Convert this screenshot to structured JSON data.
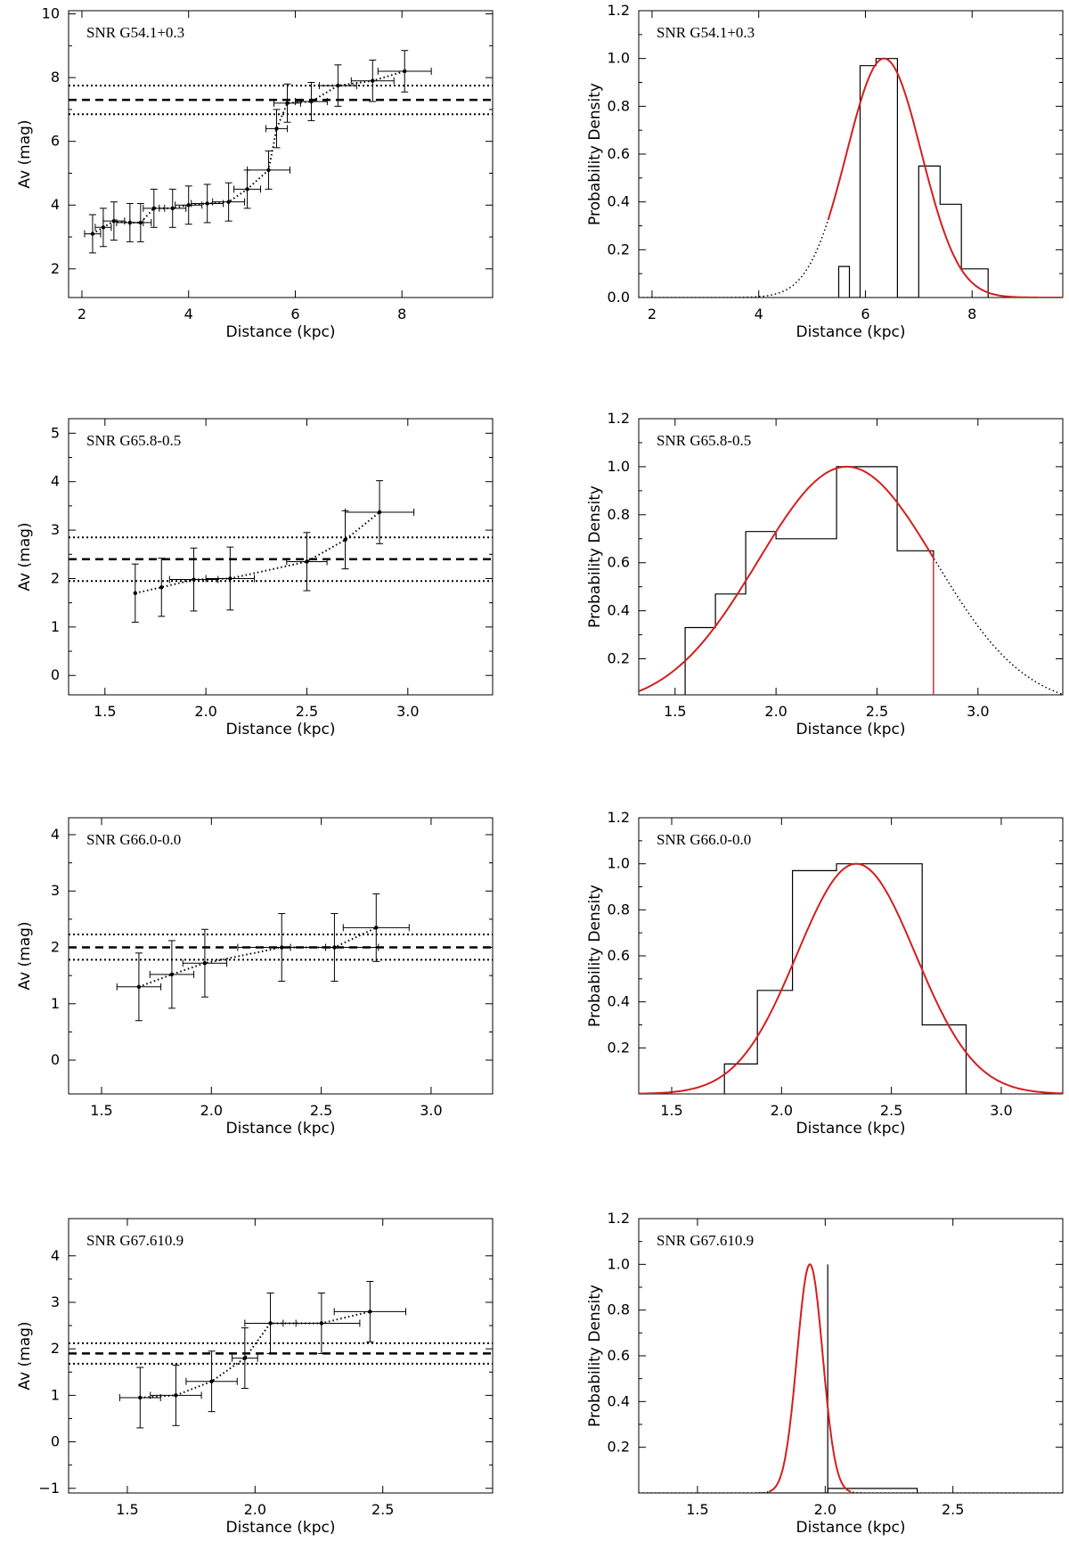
{
  "figure": {
    "rows": [
      {
        "av_panel": {
          "type": "scatter",
          "title": "SNR G54.1+0.3",
          "xlabel": "Distance (kpc)",
          "ylabel": "Av (mag)",
          "xlim": [
            1.75,
            9.7
          ],
          "ylim": [
            1.1,
            10.1
          ],
          "xticks": [
            2,
            4,
            6,
            8
          ],
          "xtick_labels": [
            "2",
            "4",
            "6",
            "8"
          ],
          "yticks": [
            2,
            4,
            6,
            8,
            10
          ],
          "ytick_labels": [
            "2",
            "4",
            "6",
            "8",
            "10"
          ],
          "hlines": {
            "mean": 7.3,
            "lower": 6.85,
            "upper": 7.75
          },
          "points": [
            {
              "x": 2.2,
              "y": 3.1,
              "xerr": 0.15,
              "yerr": 0.6
            },
            {
              "x": 2.4,
              "y": 3.3,
              "xerr": 0.15,
              "yerr": 0.6
            },
            {
              "x": 2.6,
              "y": 3.5,
              "xerr": 0.2,
              "yerr": 0.6
            },
            {
              "x": 2.9,
              "y": 3.45,
              "xerr": 0.25,
              "yerr": 0.6
            },
            {
              "x": 3.1,
              "y": 3.45,
              "xerr": 0.2,
              "yerr": 0.6
            },
            {
              "x": 3.35,
              "y": 3.9,
              "xerr": 0.2,
              "yerr": 0.6
            },
            {
              "x": 3.7,
              "y": 3.9,
              "xerr": 0.25,
              "yerr": 0.6
            },
            {
              "x": 4.0,
              "y": 4.0,
              "xerr": 0.25,
              "yerr": 0.6
            },
            {
              "x": 4.35,
              "y": 4.05,
              "xerr": 0.3,
              "yerr": 0.6
            },
            {
              "x": 4.75,
              "y": 4.1,
              "xerr": 0.3,
              "yerr": 0.6
            },
            {
              "x": 5.1,
              "y": 4.5,
              "xerr": 0.25,
              "yerr": 0.6
            },
            {
              "x": 5.5,
              "y": 5.1,
              "xerr": 0.4,
              "yerr": 0.6
            },
            {
              "x": 5.65,
              "y": 6.4,
              "xerr": 0.2,
              "yerr": 0.6
            },
            {
              "x": 5.85,
              "y": 7.2,
              "xerr": 0.25,
              "yerr": 0.6
            },
            {
              "x": 6.3,
              "y": 7.25,
              "xerr": 0.3,
              "yerr": 0.6
            },
            {
              "x": 6.8,
              "y": 7.75,
              "xerr": 0.35,
              "yerr": 0.65
            },
            {
              "x": 7.45,
              "y": 7.9,
              "xerr": 0.4,
              "yerr": 0.65
            },
            {
              "x": 8.05,
              "y": 8.2,
              "xerr": 0.5,
              "yerr": 0.65
            }
          ]
        },
        "pdf_panel": {
          "type": "histogram",
          "title": "SNR G54.1+0.3",
          "xlabel": "Distance (kpc)",
          "ylabel": "Probability Density",
          "xlim": [
            1.75,
            9.7
          ],
          "ylim": [
            0.0,
            1.2
          ],
          "xticks": [
            2,
            4,
            6,
            8
          ],
          "xtick_labels": [
            "2",
            "4",
            "6",
            "8"
          ],
          "yticks": [
            0.0,
            0.2,
            0.4,
            0.6,
            0.8,
            1.0,
            1.2
          ],
          "ytick_labels": [
            "0.0",
            "0.2",
            "0.4",
            "0.6",
            "0.8",
            "1.0",
            "1.2"
          ],
          "histogram": {
            "edges": [
              5.5,
              5.7,
              5.9,
              6.2,
              6.6,
              7.0,
              7.4,
              7.8,
              8.3
            ],
            "counts": [
              0.13,
              0.0,
              0.97,
              1.0,
              0.0,
              0.55,
              0.39,
              0.12
            ]
          },
          "gaussian": {
            "mean": 6.35,
            "sigma": 0.7,
            "peak": 1.0,
            "red_range": [
              5.3,
              9.7
            ]
          }
        }
      },
      {
        "av_panel": {
          "type": "scatter",
          "title": "SNR G65.8-0.5",
          "xlabel": "Distance (kpc)",
          "ylabel": "Av (mag)",
          "xlim": [
            1.32,
            3.42
          ],
          "ylim": [
            -0.4,
            5.3
          ],
          "xticks": [
            1.5,
            2.0,
            2.5,
            3.0
          ],
          "xtick_labels": [
            "1.5",
            "2.0",
            "2.5",
            "3.0"
          ],
          "yticks": [
            0,
            1,
            2,
            3,
            4,
            5
          ],
          "ytick_labels": [
            "0",
            "1",
            "2",
            "3",
            "4",
            "5"
          ],
          "hlines": {
            "mean": 2.4,
            "lower": 1.95,
            "upper": 2.85
          },
          "points": [
            {
              "x": 1.65,
              "y": 1.7,
              "xerr": 0.0,
              "yerr": 0.6
            },
            {
              "x": 1.78,
              "y": 1.82,
              "xerr": 0.0,
              "yerr": 0.6
            },
            {
              "x": 1.94,
              "y": 1.98,
              "xerr": 0.12,
              "yerr": 0.65
            },
            {
              "x": 2.12,
              "y": 2.0,
              "xerr": 0.12,
              "yerr": 0.65
            },
            {
              "x": 2.5,
              "y": 2.35,
              "xerr": 0.1,
              "yerr": 0.6
            },
            {
              "x": 2.69,
              "y": 2.8,
              "xerr": 0.0,
              "yerr": 0.6
            },
            {
              "x": 2.86,
              "y": 3.37,
              "xerr": 0.17,
              "yerr": 0.65
            }
          ]
        },
        "pdf_panel": {
          "type": "histogram",
          "title": "SNR G65.8-0.5",
          "xlabel": "Distance (kpc)",
          "ylabel": "Probability Density",
          "xlim": [
            1.32,
            3.42
          ],
          "ylim": [
            0.05,
            1.2
          ],
          "xticks": [
            1.5,
            2.0,
            2.5,
            3.0
          ],
          "xtick_labels": [
            "1.5",
            "2.0",
            "2.5",
            "3.0"
          ],
          "yticks": [
            0.2,
            0.4,
            0.6,
            0.8,
            1.0,
            1.2
          ],
          "ytick_labels": [
            "0.2",
            "0.4",
            "0.6",
            "0.8",
            "1.0",
            "1.2"
          ],
          "histogram": {
            "edges": [
              1.55,
              1.7,
              1.85,
              2.0,
              2.3,
              2.6,
              2.78
            ],
            "counts": [
              0.33,
              0.47,
              0.73,
              0.7,
              1.0,
              0.65
            ]
          },
          "gaussian": {
            "mean": 2.35,
            "sigma": 0.44,
            "peak": 1.0,
            "red_range": [
              1.32,
              2.78
            ]
          }
        }
      },
      {
        "av_panel": {
          "type": "scatter",
          "title": "SNR G66.0-0.0",
          "xlabel": "Distance (kpc)",
          "ylabel": "Av (mag)",
          "xlim": [
            1.35,
            3.28
          ],
          "ylim": [
            -0.6,
            4.3
          ],
          "xticks": [
            1.5,
            2.0,
            2.5,
            3.0
          ],
          "xtick_labels": [
            "1.5",
            "2.0",
            "2.5",
            "3.0"
          ],
          "yticks": [
            0,
            1,
            2,
            3,
            4
          ],
          "ytick_labels": [
            "0",
            "1",
            "2",
            "3",
            "4"
          ],
          "hlines": {
            "mean": 2.0,
            "lower": 1.78,
            "upper": 2.23
          },
          "points": [
            {
              "x": 1.67,
              "y": 1.3,
              "xerr": 0.1,
              "yerr": 0.6
            },
            {
              "x": 1.82,
              "y": 1.52,
              "xerr": 0.1,
              "yerr": 0.6
            },
            {
              "x": 1.97,
              "y": 1.72,
              "xerr": 0.1,
              "yerr": 0.6
            },
            {
              "x": 2.32,
              "y": 2.0,
              "xerr": 0.2,
              "yerr": 0.6
            },
            {
              "x": 2.56,
              "y": 2.0,
              "xerr": 0.2,
              "yerr": 0.6
            },
            {
              "x": 2.75,
              "y": 2.35,
              "xerr": 0.15,
              "yerr": 0.6
            }
          ]
        },
        "pdf_panel": {
          "type": "histogram",
          "title": "SNR G66.0-0.0",
          "xlabel": "Distance (kpc)",
          "ylabel": "Probability Density",
          "xlim": [
            1.35,
            3.28
          ],
          "ylim": [
            0.0,
            1.2
          ],
          "xticks": [
            1.5,
            2.0,
            2.5,
            3.0
          ],
          "xtick_labels": [
            "1.5",
            "2.0",
            "2.5",
            "3.0"
          ],
          "yticks": [
            0.2,
            0.4,
            0.6,
            0.8,
            1.0,
            1.2
          ],
          "ytick_labels": [
            "0.2",
            "0.4",
            "0.6",
            "0.8",
            "1.0",
            "1.2"
          ],
          "histogram": {
            "edges": [
              1.74,
              1.89,
              2.05,
              2.25,
              2.64,
              2.84
            ],
            "counts": [
              0.13,
              0.45,
              0.97,
              1.0,
              0.3
            ]
          },
          "gaussian": {
            "mean": 2.34,
            "sigma": 0.27,
            "peak": 1.0,
            "red_range": [
              1.35,
              3.28
            ]
          }
        }
      },
      {
        "av_panel": {
          "type": "scatter",
          "title": "SNR G67.610.9",
          "xlabel": "Distance (kpc)",
          "ylabel": "Av (mag)",
          "xlim": [
            1.27,
            2.93
          ],
          "ylim": [
            -1.1,
            4.8
          ],
          "xticks": [
            1.5,
            2.0,
            2.5
          ],
          "xtick_labels": [
            "1.5",
            "2.0",
            "2.5"
          ],
          "yticks": [
            -1,
            0,
            1,
            2,
            3,
            4
          ],
          "ytick_labels": [
            "−1",
            "0",
            "1",
            "2",
            "3",
            "4"
          ],
          "hlines": {
            "mean": 1.9,
            "lower": 1.68,
            "upper": 2.12
          },
          "points": [
            {
              "x": 1.55,
              "y": 0.95,
              "xerr": 0.08,
              "yerr": 0.65
            },
            {
              "x": 1.69,
              "y": 1.0,
              "xerr": 0.1,
              "yerr": 0.65
            },
            {
              "x": 1.83,
              "y": 1.3,
              "xerr": 0.1,
              "yerr": 0.65
            },
            {
              "x": 1.96,
              "y": 1.8,
              "xerr": 0.05,
              "yerr": 0.65
            },
            {
              "x": 2.06,
              "y": 2.55,
              "xerr": 0.1,
              "yerr": 0.65
            },
            {
              "x": 2.26,
              "y": 2.55,
              "xerr": 0.15,
              "yerr": 0.65
            },
            {
              "x": 2.45,
              "y": 2.8,
              "xerr": 0.14,
              "yerr": 0.65
            }
          ]
        },
        "pdf_panel": {
          "type": "histogram",
          "title": "SNR G67.610.9",
          "xlabel": "Distance (kpc)",
          "ylabel": "Probability Density",
          "xlim": [
            1.27,
            2.93
          ],
          "ylim": [
            0.0,
            1.2
          ],
          "xticks": [
            1.5,
            2.0,
            2.5
          ],
          "xtick_labels": [
            "1.5",
            "2.0",
            "2.5"
          ],
          "yticks": [
            0.2,
            0.4,
            0.6,
            0.8,
            1.0,
            1.2
          ],
          "ytick_labels": [
            "0.2",
            "0.4",
            "0.6",
            "0.8",
            "1.0",
            "1.2"
          ],
          "histogram": {
            "edges": [
              1.73,
              2.01,
              2.36
            ],
            "counts": [
              0.0,
              0.02
            ],
            "spike": {
              "x": 2.01,
              "height": 1.0
            }
          },
          "gaussian": {
            "mean": 1.94,
            "sigma": 0.05,
            "peak": 1.0,
            "red_range": [
              1.78,
              2.1
            ]
          }
        }
      }
    ]
  }
}
